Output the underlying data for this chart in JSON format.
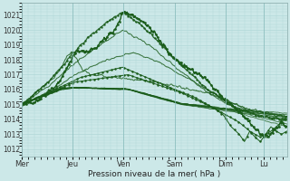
{
  "xlabel": "Pression niveau de la mer( hPa )",
  "ylim": [
    1011.5,
    1021.8
  ],
  "yticks": [
    1012,
    1013,
    1014,
    1015,
    1016,
    1017,
    1018,
    1019,
    1020,
    1021
  ],
  "day_labels": [
    "Mer",
    "Jeu",
    "Ven",
    "Sam",
    "Dim",
    "Lu"
  ],
  "day_positions": [
    0.0,
    0.192,
    0.384,
    0.576,
    0.768,
    0.912
  ],
  "bg_color": "#cce8e8",
  "grid_color": "#aad4d4",
  "line_color": "#1a5c1a",
  "n_points": 500,
  "xlim": [
    0.0,
    1.0
  ]
}
